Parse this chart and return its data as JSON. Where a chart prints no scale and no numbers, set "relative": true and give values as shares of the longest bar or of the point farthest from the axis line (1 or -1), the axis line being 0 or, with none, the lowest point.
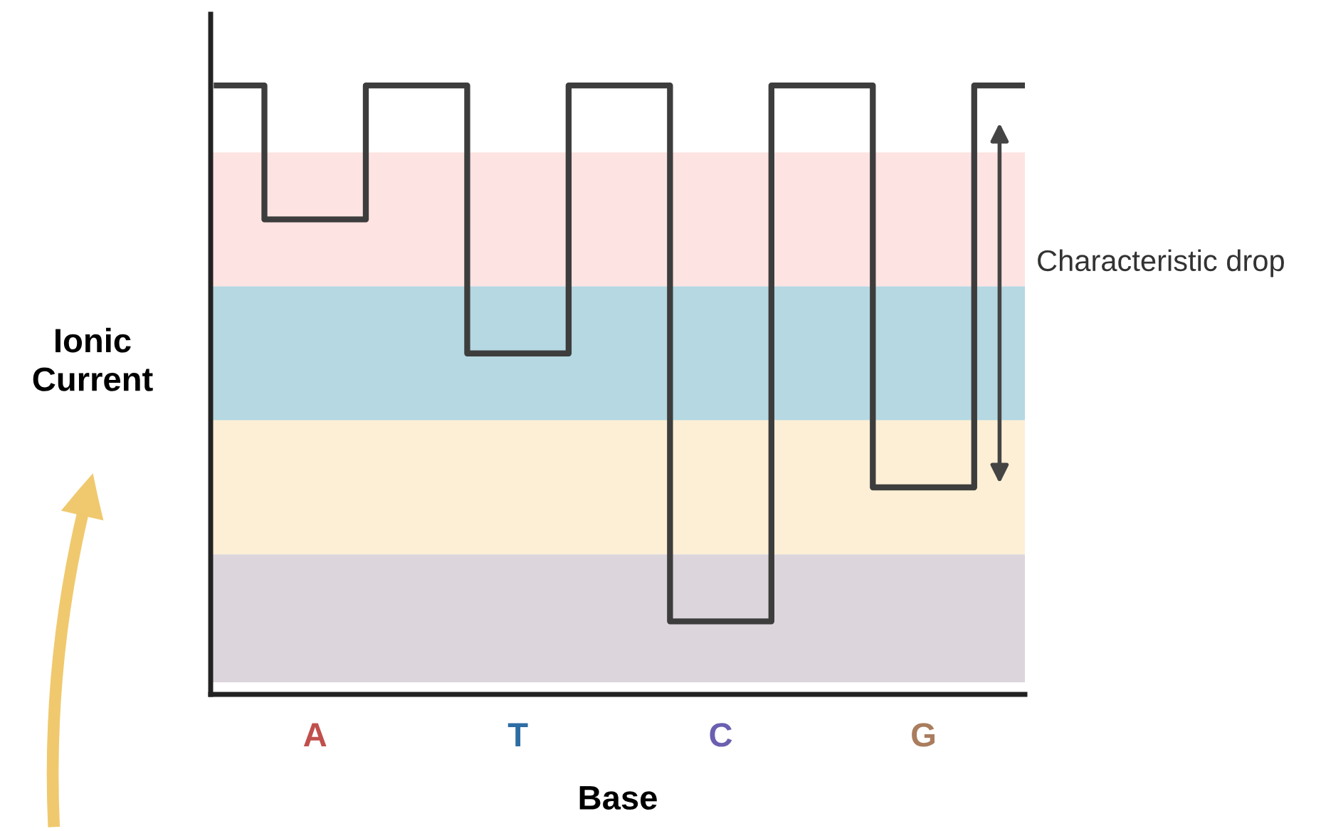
{
  "chart_data": {
    "type": "step",
    "relative": true,
    "xlabel": "Base",
    "ylabel": "Ionic Current",
    "categories": [
      null,
      "A",
      null,
      "T",
      null,
      "C",
      null,
      "G",
      null
    ],
    "series": [
      {
        "color": "#3d3d3d",
        "values": [
          1,
          0.78,
          1,
          0.56,
          1,
          0.12,
          1,
          0.34,
          1
        ]
      }
    ],
    "bands": [
      {
        "axis": "y",
        "from": 0.67,
        "to": 0.89,
        "color": "#fde3e1"
      },
      {
        "axis": "y",
        "from": 0.45,
        "to": 0.67,
        "color": "#b5d8e2"
      },
      {
        "axis": "y",
        "from": 0.23,
        "to": 0.45,
        "color": "#fdefd5"
      },
      {
        "axis": "y",
        "from": 0.02,
        "to": 0.23,
        "color": "#dcd6dc"
      }
    ],
    "annotations": [
      "Characteristic drop"
    ],
    "grid": false
  }
}
